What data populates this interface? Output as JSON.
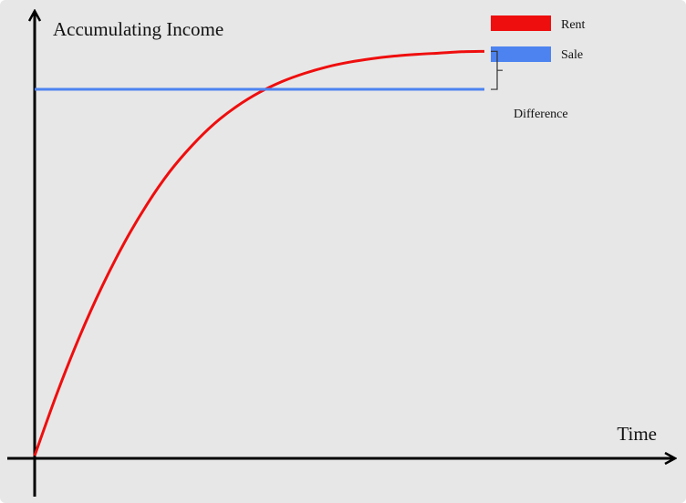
{
  "chart_data": {
    "type": "line",
    "ylabel": "Accumulating Income",
    "xlabel": "Time",
    "xlim": [
      0,
      10
    ],
    "ylim": [
      0,
      10
    ],
    "grid": false,
    "legend_position": "top-right",
    "series": [
      {
        "name": "Rent",
        "color": "#ef0e0e",
        "x": [
          0,
          0.5,
          1,
          1.5,
          2,
          2.5,
          3,
          3.5,
          4,
          4.5,
          5,
          5.5,
          6,
          6.5,
          7,
          7.5,
          8,
          8.5,
          9,
          9.5,
          10
        ],
        "y": [
          0.0,
          1.45,
          2.76,
          3.92,
          4.94,
          5.82,
          6.57,
          7.18,
          7.69,
          8.09,
          8.41,
          8.66,
          8.85,
          9.0,
          9.11,
          9.19,
          9.25,
          9.29,
          9.32,
          9.35,
          9.36
        ]
      },
      {
        "name": "Sale",
        "color": "#4c83f0",
        "x": [
          0,
          10
        ],
        "y": [
          8.48,
          8.48
        ]
      }
    ],
    "annotations": [
      {
        "text": "Difference",
        "x": 10,
        "y_from": 8.48,
        "y_to": 9.36
      }
    ]
  }
}
